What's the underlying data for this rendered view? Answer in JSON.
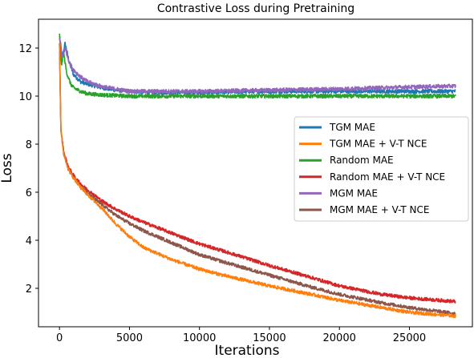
{
  "chart_data": {
    "type": "line",
    "title": "Contrastive Loss during Pretraining",
    "xlabel": "Iterations",
    "ylabel": "Loss",
    "xlim": [
      -1500,
      29500
    ],
    "ylim": [
      0.4,
      13.2
    ],
    "xticks": [
      0,
      5000,
      10000,
      15000,
      20000,
      25000
    ],
    "yticks": [
      2,
      4,
      6,
      8,
      10,
      12
    ],
    "grid": false,
    "legend_position": "center-right",
    "series": [
      {
        "name": "TGM MAE",
        "color": "#1f77b4",
        "x": [
          0,
          200,
          400,
          700,
          1000,
          1500,
          2000,
          3000,
          4000,
          5000,
          7000,
          10000,
          15000,
          20000,
          25000,
          28300
        ],
        "y": [
          12.5,
          11.6,
          12.2,
          11.4,
          10.9,
          10.6,
          10.5,
          10.35,
          10.25,
          10.2,
          10.15,
          10.15,
          10.2,
          10.2,
          10.2,
          10.2
        ],
        "noise": 0.08
      },
      {
        "name": "TGM MAE + V-T NCE",
        "color": "#ff7f0e",
        "x": [
          0,
          100,
          300,
          600,
          1000,
          1500,
          2000,
          3000,
          4000,
          5000,
          6000,
          8000,
          10000,
          12000,
          15000,
          18000,
          20000,
          23000,
          25000,
          28300
        ],
        "y": [
          12.2,
          8.6,
          7.6,
          7.0,
          6.6,
          6.2,
          5.9,
          5.35,
          4.7,
          4.15,
          3.7,
          3.2,
          2.8,
          2.5,
          2.1,
          1.75,
          1.5,
          1.2,
          1.0,
          0.85
        ],
        "noise": 0.07
      },
      {
        "name": "Random MAE",
        "color": "#2ca02c",
        "x": [
          0,
          150,
          300,
          500,
          800,
          1000,
          1500,
          2000,
          3000,
          5000,
          10000,
          15000,
          20000,
          25000,
          28300
        ],
        "y": [
          12.6,
          11.3,
          11.8,
          11.0,
          10.5,
          10.35,
          10.2,
          10.1,
          10.05,
          10.0,
          10.0,
          10.0,
          10.0,
          10.0,
          10.0
        ],
        "noise": 0.08
      },
      {
        "name": "Random MAE + V-T NCE",
        "color": "#d62728",
        "x": [
          0,
          100,
          300,
          600,
          1000,
          1500,
          2000,
          3000,
          4000,
          5000,
          6000,
          8000,
          10000,
          12000,
          15000,
          18000,
          20000,
          23000,
          25000,
          28300
        ],
        "y": [
          12.2,
          8.6,
          7.7,
          7.1,
          6.7,
          6.35,
          6.1,
          5.65,
          5.3,
          5.0,
          4.75,
          4.3,
          3.85,
          3.5,
          2.95,
          2.45,
          2.1,
          1.75,
          1.6,
          1.45
        ],
        "noise": 0.07
      },
      {
        "name": "MGM MAE",
        "color": "#9467bd",
        "x": [
          0,
          200,
          400,
          700,
          1000,
          1500,
          2000,
          3000,
          4000,
          5000,
          7000,
          10000,
          15000,
          20000,
          25000,
          28300
        ],
        "y": [
          12.4,
          11.6,
          12.0,
          11.4,
          11.1,
          10.8,
          10.6,
          10.4,
          10.3,
          10.2,
          10.2,
          10.2,
          10.25,
          10.3,
          10.38,
          10.42
        ],
        "noise": 0.08
      },
      {
        "name": "MGM MAE + V-T NCE",
        "color": "#8c564b",
        "x": [
          0,
          100,
          300,
          600,
          1000,
          1500,
          2000,
          3000,
          4000,
          5000,
          6000,
          8000,
          10000,
          12000,
          15000,
          18000,
          20000,
          23000,
          25000,
          28300
        ],
        "y": [
          12.2,
          8.6,
          7.6,
          7.0,
          6.6,
          6.25,
          5.95,
          5.5,
          5.05,
          4.7,
          4.4,
          3.9,
          3.4,
          3.05,
          2.55,
          2.05,
          1.75,
          1.4,
          1.2,
          0.95
        ],
        "noise": 0.07
      }
    ]
  }
}
